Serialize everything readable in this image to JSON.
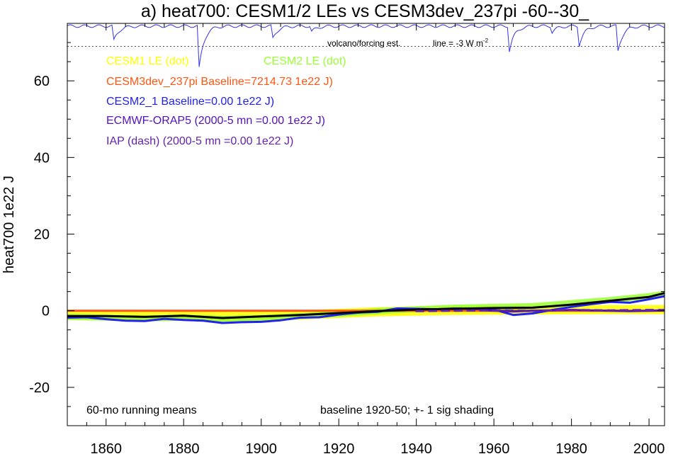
{
  "chart_data": {
    "type": "line",
    "title": "a) heat700: CESM1/2 LEs vs CESM3dev_237pi -60--30_",
    "ylabel": "heat700 1e22 J",
    "xlabel": "",
    "xlim": [
      1850,
      2004
    ],
    "ylim": [
      -30,
      75
    ],
    "x_ticks": [
      1860,
      1880,
      1900,
      1920,
      1940,
      1960,
      1980,
      2000
    ],
    "y_ticks": [
      -20,
      0,
      20,
      40,
      60
    ],
    "grid": false,
    "legend_entries": [
      {
        "text": "CESM1 LE (dot)",
        "color": "#ffff00"
      },
      {
        "text": "CESM2 LE (dot)",
        "color": "#99ff33"
      },
      {
        "text": "CESM3dev_237pi Baseline=7214.73 1e22 J)",
        "color": "#ff5511"
      },
      {
        "text": "CESM2_1 Baseline=0.00 1e22 J)",
        "color": "#2222ee"
      },
      {
        "text": "ECMWF-ORAP5 (2000-5 mn =0.00 1e22 J)",
        "color": "#5511bb"
      },
      {
        "text": "IAP (dash) (2000-5 mn =0.00 1e22 J)",
        "color": "#6622aa"
      }
    ],
    "volcano_label": "volcano/forcing est.",
    "volcano_scale_label": "line = -3 W m",
    "volcano_scale_superscript": "-2",
    "annotation_left": "60-mo running means",
    "annotation_right": "baseline 1920-50; +- 1 sig shading",
    "volcano": {
      "color": "#3333ee",
      "dotted_line_y": 69,
      "baseline_y": 75,
      "events": [
        {
          "x": 1862,
          "depth": 3.8
        },
        {
          "x": 1884,
          "depth": 11
        },
        {
          "x": 1903,
          "depth": 3.2
        },
        {
          "x": 1913,
          "depth": 1.5
        },
        {
          "x": 1964,
          "depth": 6.5
        },
        {
          "x": 1975,
          "depth": 1.6
        },
        {
          "x": 1982,
          "depth": 5.0
        },
        {
          "x": 1992,
          "depth": 6.5
        }
      ]
    },
    "series": [
      {
        "name": "CESM1 LE",
        "color": "#ffff00",
        "kind": "band",
        "x": [
          1850,
          1870,
          1890,
          1910,
          1930,
          1950,
          1970,
          1990,
          2004
        ],
        "y": [
          -1.2,
          -1.3,
          -1.4,
          -1.1,
          -0.3,
          0.1,
          0.2,
          0.3,
          0.3
        ],
        "spread": 1.2
      },
      {
        "name": "CESM2 LE",
        "color": "#99ff33",
        "kind": "band",
        "x": [
          1850,
          1860,
          1870,
          1880,
          1890,
          1900,
          1910,
          1920,
          1930,
          1940,
          1950,
          1960,
          1970,
          1980,
          1990,
          2000,
          2004
        ],
        "y": [
          -1.6,
          -1.8,
          -2.0,
          -1.8,
          -2.1,
          -1.9,
          -1.4,
          -0.8,
          -0.1,
          0.4,
          0.8,
          1.0,
          1.2,
          2.0,
          2.8,
          3.8,
          4.4
        ],
        "spread": 0.8
      },
      {
        "name": "CESM3dev_237pi",
        "color": "#ff5511",
        "kind": "line",
        "x": [
          1850,
          2004
        ],
        "y": [
          0,
          0
        ]
      },
      {
        "name": "CESM2_1",
        "color": "#2222ee",
        "kind": "line",
        "x": [
          1850,
          1855,
          1860,
          1865,
          1870,
          1875,
          1880,
          1885,
          1890,
          1895,
          1900,
          1905,
          1910,
          1915,
          1920,
          1925,
          1930,
          1935,
          1940,
          1945,
          1950,
          1955,
          1960,
          1965,
          1970,
          1975,
          1980,
          1985,
          1990,
          1995,
          2000,
          2004
        ],
        "y": [
          -1.8,
          -1.7,
          -2.2,
          -2.6,
          -2.7,
          -2.1,
          -2.4,
          -2.6,
          -3.2,
          -3.0,
          -2.9,
          -2.5,
          -1.8,
          -1.7,
          -1.0,
          -0.5,
          -0.3,
          0.6,
          0.5,
          0.4,
          0.6,
          0.5,
          0.3,
          -1.1,
          -0.7,
          0.2,
          1.0,
          1.7,
          2.3,
          2.1,
          3.0,
          3.8
        ]
      },
      {
        "name": "CESM1 LE mean",
        "color": "#000000",
        "kind": "line",
        "x": [
          1850,
          1860,
          1870,
          1880,
          1890,
          1900,
          1910,
          1920,
          1930,
          1940,
          1950,
          1960,
          1970,
          1980,
          1990,
          2000,
          2004
        ],
        "y": [
          -1.4,
          -1.4,
          -1.6,
          -1.3,
          -1.9,
          -1.5,
          -1.1,
          -0.6,
          -0.1,
          0.3,
          0.5,
          0.7,
          0.8,
          1.6,
          2.6,
          3.6,
          4.6
        ]
      },
      {
        "name": "ECMWF-ORAP5",
        "color": "#5511bb",
        "kind": "line",
        "x": [
          1958,
          1965,
          1970,
          1975,
          1980,
          1985,
          1990,
          1995,
          2000,
          2004
        ],
        "y": [
          0.1,
          -0.2,
          0.0,
          0.1,
          0.2,
          0.1,
          0.0,
          -0.1,
          0.0,
          0.1
        ]
      },
      {
        "name": "IAP",
        "color": "#6622aa",
        "kind": "dash",
        "x": [
          1940,
          1950,
          1960,
          1970,
          1980,
          1990,
          2000,
          2004
        ],
        "y": [
          -0.1,
          0.0,
          0.1,
          0.0,
          0.2,
          0.1,
          0.2,
          0.2
        ]
      }
    ]
  }
}
